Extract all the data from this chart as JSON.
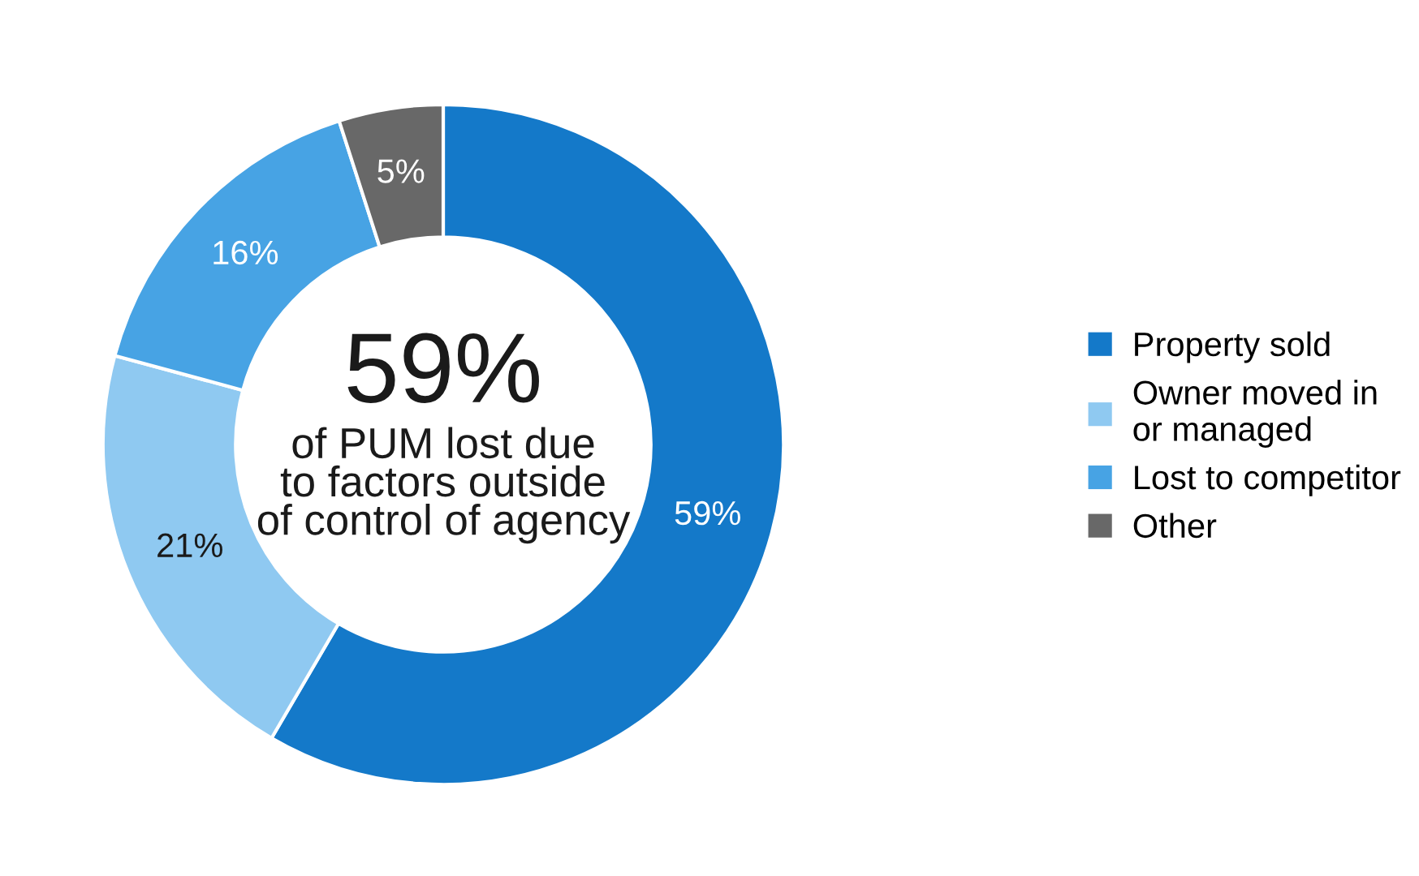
{
  "chart_data": {
    "type": "donut",
    "categories": [
      "Property sold",
      "Owner moved in\nor managed",
      "Lost to competitor",
      "Other"
    ],
    "values": [
      59,
      21,
      16,
      5
    ],
    "colors": [
      "#1479c9",
      "#8fc9f1",
      "#47a3e4",
      "#686868"
    ],
    "value_labels": [
      "59%",
      "21%",
      "16%",
      "5%"
    ],
    "annotations": [
      "59%",
      "of PUM lost due\nto factors outside\nof control of agency"
    ],
    "legend": "right"
  }
}
